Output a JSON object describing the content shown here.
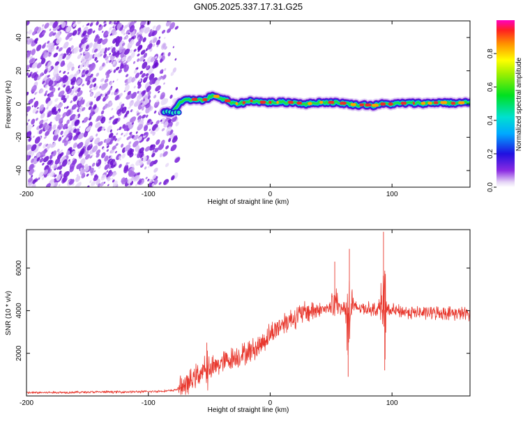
{
  "page_title": "GN05.2025.337.17.31.G25",
  "chart_data": [
    {
      "type": "heatmap",
      "title": "GN05.2025.337.17.31.G25",
      "xlabel": "Height of straight line (km)",
      "ylabel": "Frequency (Hz)",
      "xlim": [
        -200,
        164
      ],
      "ylim": [
        -50,
        50
      ],
      "xticks": [
        "-200",
        "-100",
        "0",
        "100"
      ],
      "xtick_values": [
        -200,
        -100,
        0,
        100
      ],
      "yticks": [
        "-40",
        "-20",
        "0",
        "20",
        "40"
      ],
      "ytick_values": [
        -40,
        -20,
        0,
        20,
        40
      ],
      "noise_region_x": [
        -200,
        -76
      ],
      "signal_start_x": -87,
      "ridge": {
        "x": [
          -87,
          -80,
          -75,
          -70,
          -65,
          -60,
          -55,
          -50,
          -45,
          -40,
          -35,
          -30,
          -25,
          -20,
          -15,
          -10,
          -5,
          0,
          10,
          20,
          30,
          40,
          50,
          60,
          70,
          80,
          85,
          90,
          100,
          110,
          120,
          130,
          140,
          150,
          164
        ],
        "y": [
          -5,
          -5,
          0,
          2,
          2.5,
          3,
          2,
          4,
          5,
          3,
          2,
          0,
          0.5,
          1,
          2,
          1.5,
          1,
          1,
          1,
          1,
          0,
          1,
          1,
          0.5,
          -0.5,
          -0.5,
          -1,
          0,
          0,
          0.5,
          0.5,
          0.5,
          1,
          0.5,
          1
        ]
      },
      "colorbar": {
        "label": "Normalized spectral amplitude",
        "range": [
          0,
          1
        ],
        "ticks": [
          "0.0",
          "0.2",
          "0.4",
          "0.6",
          "0.8"
        ],
        "tick_values": [
          0.0,
          0.2,
          0.4,
          0.6,
          0.8
        ]
      }
    },
    {
      "type": "line",
      "xlabel": "Height of straight line (km)",
      "ylabel": "SNR (10 * v/v)",
      "xlim": [
        -200,
        164
      ],
      "ylim": [
        0,
        7800
      ],
      "xticks": [
        "-200",
        "-100",
        "0",
        "100"
      ],
      "xtick_values": [
        -200,
        -100,
        0,
        100
      ],
      "yticks": [
        "2000",
        "4000",
        "6000"
      ],
      "ytick_values": [
        2000,
        4000,
        6000
      ],
      "color": "#e8382e",
      "envelope": {
        "x": [
          -200,
          -150,
          -100,
          -80,
          -70,
          -65,
          -60,
          -50,
          -40,
          -30,
          -20,
          -10,
          0,
          10,
          20,
          30,
          40,
          50,
          60,
          70,
          80,
          90,
          100,
          110,
          120,
          140,
          164
        ],
        "y": [
          150,
          180,
          200,
          250,
          450,
          700,
          1000,
          1200,
          1550,
          1800,
          2000,
          2300,
          2900,
          3400,
          3700,
          3950,
          4050,
          4100,
          4150,
          4150,
          4100,
          4050,
          4000,
          3950,
          3900,
          3900,
          3850
        ]
      },
      "spikes": [
        {
          "x": -52,
          "y": 2500
        },
        {
          "x": 53,
          "y": 6300
        },
        {
          "x": 65,
          "y": 6900
        },
        {
          "x": 93,
          "y": 7700
        }
      ],
      "dips": [
        {
          "x": 64,
          "y": 900
        },
        {
          "x": 94,
          "y": 1200
        }
      ]
    }
  ],
  "colors": {
    "noise": "#7a22d8",
    "heat_high": "#e8302a",
    "line": "#e8382e"
  }
}
